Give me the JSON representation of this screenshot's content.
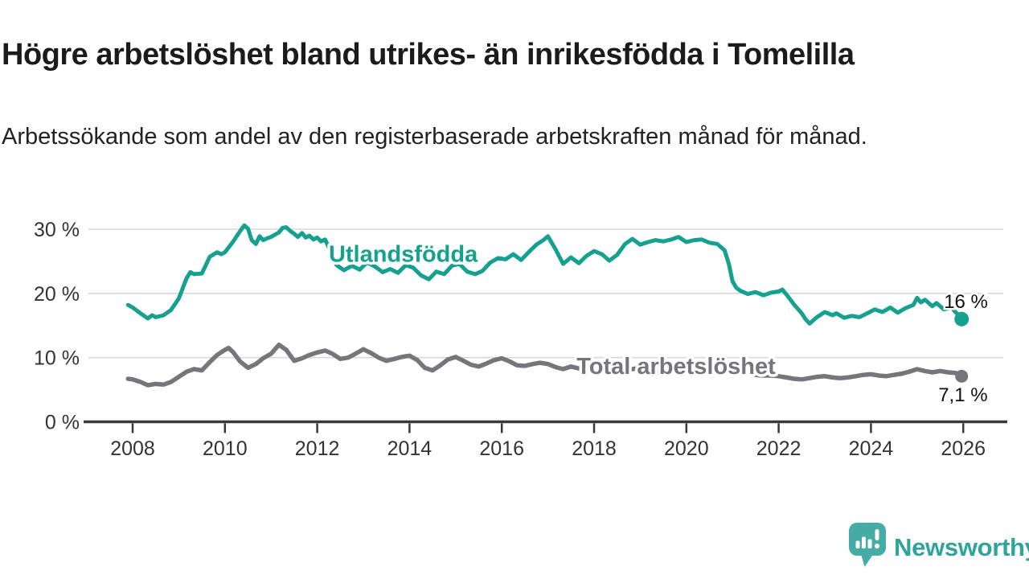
{
  "header": {
    "title": "Högre arbetslöshet bland utrikes- än inrikesfödda i Tomelilla",
    "subtitle": "Arbetssökande som andel av den registerbaserade arbetskraften månad för månad."
  },
  "branding": {
    "name": "Newsworthy",
    "icon": "speech-bubble-bar-chart-exclamation",
    "icon_color": "#45ada5",
    "text_color": "#2ea49d"
  },
  "colors": {
    "background": "#ffffff",
    "title_text": "#1b1b1b",
    "body_text": "#222222",
    "tick_text": "#333333",
    "grid": "#d8d8d8",
    "axis": "#3a3a3a",
    "end_label_text": "#111111",
    "series_utlandsfodda": "#16a090",
    "series_total": "#76767a"
  },
  "chart_data": {
    "type": "line",
    "title": "Högre arbetslöshet bland utrikes- än inrikesfödda i Tomelilla",
    "subtitle": "Arbetssökande som andel av den registerbaserade arbetskraften månad för månad.",
    "xlabel": "",
    "ylabel": "",
    "grid": "horizontal",
    "legend_position": "inline-labels",
    "x_axis": {
      "min": 2007.6,
      "max": 2026.9,
      "ticks": [
        2008,
        2010,
        2012,
        2014,
        2016,
        2018,
        2020,
        2022,
        2024,
        2026
      ]
    },
    "y_axis": {
      "min": 0,
      "max": 32,
      "ticks": [
        {
          "v": 0,
          "label": "0 %"
        },
        {
          "v": 10,
          "label": "10 %"
        },
        {
          "v": 20,
          "label": "20 %"
        },
        {
          "v": 30,
          "label": "30 %"
        }
      ]
    },
    "series": [
      {
        "name": "Utlandsfödda",
        "color": "#16a090",
        "end_label": "16 %",
        "last_value": 16,
        "label_anchor": {
          "x": 2012.25,
          "y": 24.9
        },
        "points": [
          [
            2007.9,
            18.2
          ],
          [
            2008.0,
            17.8
          ],
          [
            2008.17,
            16.9
          ],
          [
            2008.33,
            16.1
          ],
          [
            2008.42,
            16.6
          ],
          [
            2008.5,
            16.3
          ],
          [
            2008.67,
            16.6
          ],
          [
            2008.83,
            17.4
          ],
          [
            2009.0,
            19.2
          ],
          [
            2009.17,
            22.4
          ],
          [
            2009.25,
            23.3
          ],
          [
            2009.33,
            23.0
          ],
          [
            2009.5,
            23.1
          ],
          [
            2009.67,
            25.7
          ],
          [
            2009.83,
            26.4
          ],
          [
            2009.92,
            26.1
          ],
          [
            2010.0,
            26.4
          ],
          [
            2010.17,
            28.0
          ],
          [
            2010.33,
            29.7
          ],
          [
            2010.42,
            30.6
          ],
          [
            2010.5,
            30.1
          ],
          [
            2010.58,
            28.3
          ],
          [
            2010.67,
            27.7
          ],
          [
            2010.75,
            28.9
          ],
          [
            2010.83,
            28.3
          ],
          [
            2010.92,
            28.6
          ],
          [
            2011.0,
            28.8
          ],
          [
            2011.17,
            29.5
          ],
          [
            2011.25,
            30.2
          ],
          [
            2011.33,
            30.3
          ],
          [
            2011.42,
            29.7
          ],
          [
            2011.5,
            29.3
          ],
          [
            2011.58,
            28.8
          ],
          [
            2011.67,
            29.4
          ],
          [
            2011.75,
            28.7
          ],
          [
            2011.83,
            29.0
          ],
          [
            2011.92,
            28.4
          ],
          [
            2012.0,
            28.7
          ],
          [
            2012.08,
            28.1
          ],
          [
            2012.17,
            28.4
          ],
          [
            2012.25,
            27.2
          ],
          [
            2012.33,
            25.6
          ],
          [
            2012.42,
            24.4
          ],
          [
            2012.58,
            23.6
          ],
          [
            2012.75,
            24.3
          ],
          [
            2012.92,
            23.7
          ],
          [
            2013.08,
            24.8
          ],
          [
            2013.25,
            24.2
          ],
          [
            2013.42,
            23.3
          ],
          [
            2013.58,
            23.8
          ],
          [
            2013.75,
            23.2
          ],
          [
            2013.92,
            24.4
          ],
          [
            2014.08,
            24.0
          ],
          [
            2014.25,
            22.8
          ],
          [
            2014.42,
            22.2
          ],
          [
            2014.58,
            23.4
          ],
          [
            2014.75,
            23.0
          ],
          [
            2014.92,
            24.3
          ],
          [
            2015.08,
            24.6
          ],
          [
            2015.25,
            23.4
          ],
          [
            2015.42,
            23.0
          ],
          [
            2015.58,
            23.5
          ],
          [
            2015.75,
            24.8
          ],
          [
            2015.92,
            25.5
          ],
          [
            2016.08,
            25.3
          ],
          [
            2016.25,
            26.1
          ],
          [
            2016.42,
            25.2
          ],
          [
            2016.58,
            26.4
          ],
          [
            2016.75,
            27.6
          ],
          [
            2016.92,
            28.4
          ],
          [
            2017.0,
            28.9
          ],
          [
            2017.17,
            26.8
          ],
          [
            2017.33,
            24.6
          ],
          [
            2017.5,
            25.6
          ],
          [
            2017.67,
            24.7
          ],
          [
            2017.83,
            25.8
          ],
          [
            2018.0,
            26.6
          ],
          [
            2018.17,
            26.1
          ],
          [
            2018.33,
            25.1
          ],
          [
            2018.5,
            26.0
          ],
          [
            2018.67,
            27.7
          ],
          [
            2018.83,
            28.5
          ],
          [
            2019.0,
            27.6
          ],
          [
            2019.17,
            28.0
          ],
          [
            2019.33,
            28.3
          ],
          [
            2019.5,
            28.1
          ],
          [
            2019.67,
            28.4
          ],
          [
            2019.83,
            28.8
          ],
          [
            2020.0,
            28.0
          ],
          [
            2020.17,
            28.3
          ],
          [
            2020.33,
            28.4
          ],
          [
            2020.5,
            27.9
          ],
          [
            2020.67,
            27.7
          ],
          [
            2020.83,
            26.7
          ],
          [
            2020.92,
            24.6
          ],
          [
            2021.0,
            21.9
          ],
          [
            2021.08,
            20.9
          ],
          [
            2021.17,
            20.4
          ],
          [
            2021.33,
            19.9
          ],
          [
            2021.5,
            20.2
          ],
          [
            2021.67,
            19.7
          ],
          [
            2021.83,
            20.1
          ],
          [
            2022.0,
            20.3
          ],
          [
            2022.08,
            20.6
          ],
          [
            2022.17,
            19.8
          ],
          [
            2022.33,
            18.3
          ],
          [
            2022.5,
            16.9
          ],
          [
            2022.58,
            16.0
          ],
          [
            2022.67,
            15.3
          ],
          [
            2022.83,
            16.3
          ],
          [
            2023.0,
            17.1
          ],
          [
            2023.17,
            16.6
          ],
          [
            2023.25,
            16.9
          ],
          [
            2023.42,
            16.2
          ],
          [
            2023.58,
            16.5
          ],
          [
            2023.75,
            16.3
          ],
          [
            2023.92,
            16.9
          ],
          [
            2024.08,
            17.5
          ],
          [
            2024.25,
            17.1
          ],
          [
            2024.42,
            17.8
          ],
          [
            2024.58,
            17.0
          ],
          [
            2024.75,
            17.7
          ],
          [
            2024.92,
            18.2
          ],
          [
            2025.0,
            19.3
          ],
          [
            2025.08,
            18.6
          ],
          [
            2025.17,
            19.0
          ],
          [
            2025.33,
            18.0
          ],
          [
            2025.42,
            18.5
          ],
          [
            2025.58,
            17.5
          ],
          [
            2025.75,
            17.8
          ],
          [
            2025.83,
            17.1
          ],
          [
            2026.0,
            16.0
          ]
        ]
      },
      {
        "name": "Total arbetslöshet",
        "color": "#76767a",
        "end_label": "7,1 %",
        "last_value": 7.1,
        "label_anchor": {
          "x": 2017.62,
          "y": 7.45
        },
        "points": [
          [
            2007.9,
            6.7
          ],
          [
            2008.0,
            6.6
          ],
          [
            2008.17,
            6.2
          ],
          [
            2008.33,
            5.7
          ],
          [
            2008.5,
            5.9
          ],
          [
            2008.67,
            5.8
          ],
          [
            2008.83,
            6.2
          ],
          [
            2009.0,
            7.0
          ],
          [
            2009.17,
            7.8
          ],
          [
            2009.33,
            8.2
          ],
          [
            2009.5,
            8.0
          ],
          [
            2009.67,
            9.3
          ],
          [
            2009.83,
            10.4
          ],
          [
            2010.0,
            11.2
          ],
          [
            2010.08,
            11.5
          ],
          [
            2010.17,
            10.9
          ],
          [
            2010.33,
            9.4
          ],
          [
            2010.5,
            8.4
          ],
          [
            2010.67,
            9.0
          ],
          [
            2010.83,
            9.9
          ],
          [
            2011.0,
            10.6
          ],
          [
            2011.17,
            12.0
          ],
          [
            2011.33,
            11.2
          ],
          [
            2011.5,
            9.5
          ],
          [
            2011.67,
            9.9
          ],
          [
            2011.83,
            10.4
          ],
          [
            2012.0,
            10.8
          ],
          [
            2012.17,
            11.1
          ],
          [
            2012.33,
            10.6
          ],
          [
            2012.5,
            9.8
          ],
          [
            2012.67,
            10.0
          ],
          [
            2012.83,
            10.6
          ],
          [
            2013.0,
            11.3
          ],
          [
            2013.17,
            10.7
          ],
          [
            2013.33,
            10.0
          ],
          [
            2013.5,
            9.5
          ],
          [
            2013.67,
            9.8
          ],
          [
            2013.83,
            10.1
          ],
          [
            2014.0,
            10.3
          ],
          [
            2014.17,
            9.6
          ],
          [
            2014.33,
            8.4
          ],
          [
            2014.5,
            8.0
          ],
          [
            2014.67,
            8.8
          ],
          [
            2014.83,
            9.7
          ],
          [
            2015.0,
            10.1
          ],
          [
            2015.17,
            9.5
          ],
          [
            2015.33,
            8.9
          ],
          [
            2015.5,
            8.6
          ],
          [
            2015.67,
            9.1
          ],
          [
            2015.83,
            9.6
          ],
          [
            2016.0,
            9.9
          ],
          [
            2016.17,
            9.4
          ],
          [
            2016.33,
            8.8
          ],
          [
            2016.5,
            8.7
          ],
          [
            2016.67,
            9.0
          ],
          [
            2016.83,
            9.2
          ],
          [
            2017.0,
            9.0
          ],
          [
            2017.17,
            8.5
          ],
          [
            2017.33,
            8.2
          ],
          [
            2017.5,
            8.6
          ],
          [
            2017.67,
            8.3
          ],
          [
            2017.83,
            8.5
          ],
          [
            2018.0,
            8.8
          ],
          [
            2018.17,
            8.4
          ],
          [
            2018.33,
            7.9
          ],
          [
            2018.5,
            7.6
          ],
          [
            2018.67,
            7.9
          ],
          [
            2018.83,
            8.2
          ],
          [
            2019.0,
            8.4
          ],
          [
            2019.17,
            8.1
          ],
          [
            2019.33,
            7.7
          ],
          [
            2019.5,
            7.6
          ],
          [
            2019.67,
            7.8
          ],
          [
            2019.83,
            8.0
          ],
          [
            2020.0,
            8.1
          ],
          [
            2020.17,
            8.5
          ],
          [
            2020.33,
            8.8
          ],
          [
            2020.5,
            8.5
          ],
          [
            2020.67,
            8.2
          ],
          [
            2020.83,
            8.0
          ],
          [
            2021.0,
            7.9
          ],
          [
            2021.17,
            7.7
          ],
          [
            2021.33,
            7.5
          ],
          [
            2021.5,
            7.3
          ],
          [
            2021.67,
            7.2
          ],
          [
            2021.83,
            7.2
          ],
          [
            2022.0,
            7.1
          ],
          [
            2022.17,
            6.9
          ],
          [
            2022.33,
            6.7
          ],
          [
            2022.5,
            6.6
          ],
          [
            2022.67,
            6.8
          ],
          [
            2022.83,
            7.0
          ],
          [
            2023.0,
            7.1
          ],
          [
            2023.17,
            6.9
          ],
          [
            2023.33,
            6.8
          ],
          [
            2023.5,
            6.9
          ],
          [
            2023.67,
            7.1
          ],
          [
            2023.83,
            7.3
          ],
          [
            2024.0,
            7.4
          ],
          [
            2024.17,
            7.2
          ],
          [
            2024.33,
            7.1
          ],
          [
            2024.5,
            7.3
          ],
          [
            2024.67,
            7.5
          ],
          [
            2024.83,
            7.8
          ],
          [
            2025.0,
            8.2
          ],
          [
            2025.17,
            7.9
          ],
          [
            2025.33,
            7.7
          ],
          [
            2025.5,
            7.9
          ],
          [
            2025.67,
            7.7
          ],
          [
            2025.83,
            7.6
          ],
          [
            2026.0,
            7.1
          ]
        ]
      }
    ]
  }
}
